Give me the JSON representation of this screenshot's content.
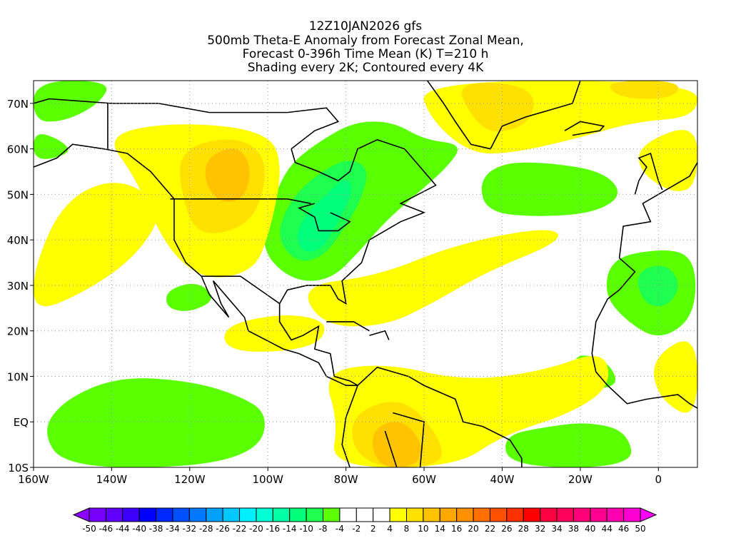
{
  "chart_data": {
    "type": "heatmap",
    "title_lines": [
      "12Z10JAN2026 gfs",
      "500mb Theta-E Anomaly from Forecast Zonal Mean,",
      "Forecast 0-396h Time Mean (K) T=210 h",
      "Shading every 2K; Contoured every 4K"
    ],
    "units": "K",
    "xlim": [
      -160,
      10
    ],
    "ylim": [
      -10,
      75
    ],
    "grid": true,
    "x_ticks": [
      {
        "value": -160,
        "label": "160W"
      },
      {
        "value": -140,
        "label": "140W"
      },
      {
        "value": -120,
        "label": "120W"
      },
      {
        "value": -100,
        "label": "100W"
      },
      {
        "value": -80,
        "label": "80W"
      },
      {
        "value": -60,
        "label": "60W"
      },
      {
        "value": -40,
        "label": "40W"
      },
      {
        "value": -20,
        "label": "20W"
      },
      {
        "value": 0,
        "label": "0"
      }
    ],
    "y_ticks": [
      {
        "value": -10,
        "label": "10S"
      },
      {
        "value": 0,
        "label": "EQ"
      },
      {
        "value": 10,
        "label": "10N"
      },
      {
        "value": 20,
        "label": "20N"
      },
      {
        "value": 30,
        "label": "30N"
      },
      {
        "value": 40,
        "label": "40N"
      },
      {
        "value": 50,
        "label": "50N"
      },
      {
        "value": 60,
        "label": "60N"
      },
      {
        "value": 70,
        "label": "70N"
      }
    ],
    "colorbar": {
      "labels": [
        "-50",
        "-46",
        "-44",
        "-40",
        "-38",
        "-34",
        "-32",
        "-28",
        "-26",
        "-22",
        "-20",
        "-16",
        "-14",
        "-10",
        "-8",
        "-4",
        "-2",
        "2",
        "4",
        "8",
        "10",
        "14",
        "16",
        "20",
        "22",
        "26",
        "28",
        "32",
        "34",
        "38",
        "40",
        "44",
        "46",
        "50"
      ],
      "low_arrow_color": "#8c00ff",
      "high_arrow_color": "#ff00ff",
      "colors": [
        "#7800ff",
        "#6000ff",
        "#3c00ff",
        "#0000ff",
        "#0028ff",
        "#0050ff",
        "#0078ff",
        "#00a0ff",
        "#00c8ff",
        "#00f0ff",
        "#00ffd2",
        "#00ffa6",
        "#00ff7a",
        "#1eff50",
        "#5aff00",
        "#ffffff",
        "#ffffff",
        "#ffffff",
        "#ffff00",
        "#ffe100",
        "#ffc300",
        "#ffa800",
        "#ff9000",
        "#ff7000",
        "#ff5000",
        "#ff3000",
        "#ff0000",
        "#ff0040",
        "#ff005a",
        "#ff0078",
        "#ff0090",
        "#ff00b0",
        "#ff00d2"
      ]
    },
    "regions": [
      {
        "class": 14,
        "points": [
          [
            -160,
            75
          ],
          [
            -140,
            75
          ],
          [
            -143,
            70
          ],
          [
            -152,
            66
          ],
          [
            -160,
            66
          ]
        ]
      },
      {
        "class": 14,
        "points": [
          [
            -160,
            64
          ],
          [
            -153,
            62
          ],
          [
            -150,
            59
          ],
          [
            -160,
            57
          ]
        ]
      },
      {
        "class": 14,
        "points": [
          [
            -102,
            38
          ],
          [
            -99,
            48
          ],
          [
            -95,
            56
          ],
          [
            -88,
            61
          ],
          [
            -78,
            66
          ],
          [
            -68,
            66
          ],
          [
            -60,
            62
          ],
          [
            -50,
            61
          ],
          [
            -54,
            56
          ],
          [
            -62,
            50
          ],
          [
            -70,
            44
          ],
          [
            -76,
            38
          ],
          [
            -84,
            31
          ],
          [
            -94,
            31
          ]
        ]
      },
      {
        "class": 13,
        "points": [
          [
            -98,
            41
          ],
          [
            -94,
            49
          ],
          [
            -88,
            54
          ],
          [
            -80,
            58
          ],
          [
            -74,
            56
          ],
          [
            -76,
            49
          ],
          [
            -80,
            43
          ],
          [
            -86,
            36
          ],
          [
            -93,
            35
          ]
        ]
      },
      {
        "class": 12,
        "points": [
          [
            -93,
            41
          ],
          [
            -90,
            46
          ],
          [
            -85,
            50
          ],
          [
            -80,
            54
          ],
          [
            -78,
            51
          ],
          [
            -82,
            44
          ],
          [
            -86,
            38
          ],
          [
            -91,
            37
          ]
        ]
      },
      {
        "class": 14,
        "points": [
          [
            -46,
            53
          ],
          [
            -40,
            57
          ],
          [
            -28,
            57
          ],
          [
            -14,
            55
          ],
          [
            -9,
            50
          ],
          [
            -16,
            46
          ],
          [
            -30,
            45
          ],
          [
            -44,
            46
          ]
        ]
      },
      {
        "class": 14,
        "points": [
          [
            -12,
            36
          ],
          [
            0,
            38
          ],
          [
            8,
            37
          ],
          [
            10,
            30
          ],
          [
            8,
            22
          ],
          [
            0,
            18
          ],
          [
            -8,
            22
          ],
          [
            -14,
            28
          ]
        ]
      },
      {
        "class": 13,
        "points": [
          [
            -6,
            33
          ],
          [
            2,
            35
          ],
          [
            6,
            30
          ],
          [
            2,
            25
          ],
          [
            -4,
            26
          ]
        ]
      },
      {
        "class": 14,
        "points": [
          [
            -152,
            5
          ],
          [
            -138,
            10
          ],
          [
            -120,
            9
          ],
          [
            -108,
            6
          ],
          [
            -100,
            2
          ],
          [
            -102,
            -6
          ],
          [
            -118,
            -10
          ],
          [
            -152,
            -10
          ],
          [
            -158,
            -2
          ]
        ]
      },
      {
        "class": 14,
        "points": [
          [
            -40,
            -3
          ],
          [
            -28,
            -1
          ],
          [
            -18,
            0
          ],
          [
            -8,
            -2
          ],
          [
            -6,
            -10
          ],
          [
            -38,
            -10
          ]
        ]
      },
      {
        "class": 14,
        "points": [
          [
            -22,
            15
          ],
          [
            -14,
            14
          ],
          [
            -10,
            9
          ],
          [
            -14,
            7
          ],
          [
            -20,
            9
          ]
        ]
      },
      {
        "class": 14,
        "points": [
          [
            -126,
            29
          ],
          [
            -118,
            31
          ],
          [
            -113,
            27
          ],
          [
            -120,
            24
          ],
          [
            -126,
            25
          ]
        ]
      },
      {
        "class": 18,
        "points": [
          [
            -142,
            63
          ],
          [
            -124,
            66
          ],
          [
            -100,
            64
          ],
          [
            -96,
            56
          ],
          [
            -100,
            40
          ],
          [
            -104,
            33
          ],
          [
            -116,
            31
          ],
          [
            -126,
            38
          ],
          [
            -134,
            54
          ]
        ]
      },
      {
        "class": 19,
        "points": [
          [
            -123,
            60
          ],
          [
            -108,
            63
          ],
          [
            -100,
            58
          ],
          [
            -102,
            47
          ],
          [
            -108,
            42
          ],
          [
            -118,
            41
          ],
          [
            -122,
            49
          ]
        ]
      },
      {
        "class": 20,
        "points": [
          [
            -116,
            58
          ],
          [
            -108,
            61
          ],
          [
            -104,
            56
          ],
          [
            -106,
            49
          ],
          [
            -112,
            48
          ],
          [
            -116,
            52
          ]
        ]
      },
      {
        "class": 18,
        "points": [
          [
            -62,
            75
          ],
          [
            10,
            75
          ],
          [
            10,
            67
          ],
          [
            -6,
            66
          ],
          [
            -22,
            62
          ],
          [
            -38,
            59
          ],
          [
            -48,
            59
          ],
          [
            -58,
            66
          ]
        ]
      },
      {
        "class": 19,
        "points": [
          [
            -52,
            75
          ],
          [
            -32,
            74
          ],
          [
            -32,
            66
          ],
          [
            -42,
            63
          ],
          [
            -48,
            67
          ]
        ]
      },
      {
        "class": 19,
        "points": [
          [
            -14,
            75
          ],
          [
            6,
            75
          ],
          [
            4,
            71
          ],
          [
            -10,
            71
          ]
        ]
      },
      {
        "class": 18,
        "points": [
          [
            -160,
            34
          ],
          [
            -152,
            49
          ],
          [
            -138,
            54
          ],
          [
            -126,
            47
          ],
          [
            -134,
            36
          ],
          [
            -148,
            28
          ],
          [
            -160,
            24
          ]
        ]
      },
      {
        "class": 18,
        "points": [
          [
            -92,
            30
          ],
          [
            -72,
            32
          ],
          [
            -52,
            39
          ],
          [
            -28,
            43
          ],
          [
            -24,
            40
          ],
          [
            -44,
            33
          ],
          [
            -58,
            26
          ],
          [
            -70,
            21
          ],
          [
            -86,
            21
          ]
        ]
      },
      {
        "class": 18,
        "points": [
          [
            -86,
            11
          ],
          [
            -70,
            13
          ],
          [
            -50,
            9
          ],
          [
            -30,
            11
          ],
          [
            -14,
            16
          ],
          [
            -12,
            8
          ],
          [
            -22,
            2
          ],
          [
            -40,
            -3
          ],
          [
            -52,
            -10
          ],
          [
            -84,
            -10
          ],
          [
            -82,
            0
          ]
        ]
      },
      {
        "class": 19,
        "points": [
          [
            -80,
            1
          ],
          [
            -66,
            6
          ],
          [
            -56,
            -3
          ],
          [
            -55,
            -10
          ],
          [
            -76,
            -10
          ]
        ]
      },
      {
        "class": 20,
        "points": [
          [
            -74,
            -2
          ],
          [
            -66,
            1
          ],
          [
            -60,
            -5
          ],
          [
            -62,
            -10
          ],
          [
            -72,
            -10
          ]
        ]
      },
      {
        "class": 18,
        "points": [
          [
            -112,
            21
          ],
          [
            -96,
            24
          ],
          [
            -84,
            22
          ],
          [
            -88,
            16
          ],
          [
            -110,
            15
          ]
        ]
      },
      {
        "class": 18,
        "points": [
          [
            -5,
            61
          ],
          [
            10,
            66
          ],
          [
            10,
            52
          ],
          [
            4,
            50
          ],
          [
            -5,
            55
          ]
        ]
      },
      {
        "class": 18,
        "points": [
          [
            -2,
            14
          ],
          [
            10,
            20
          ],
          [
            10,
            0
          ],
          [
            0,
            5
          ]
        ]
      }
    ]
  }
}
